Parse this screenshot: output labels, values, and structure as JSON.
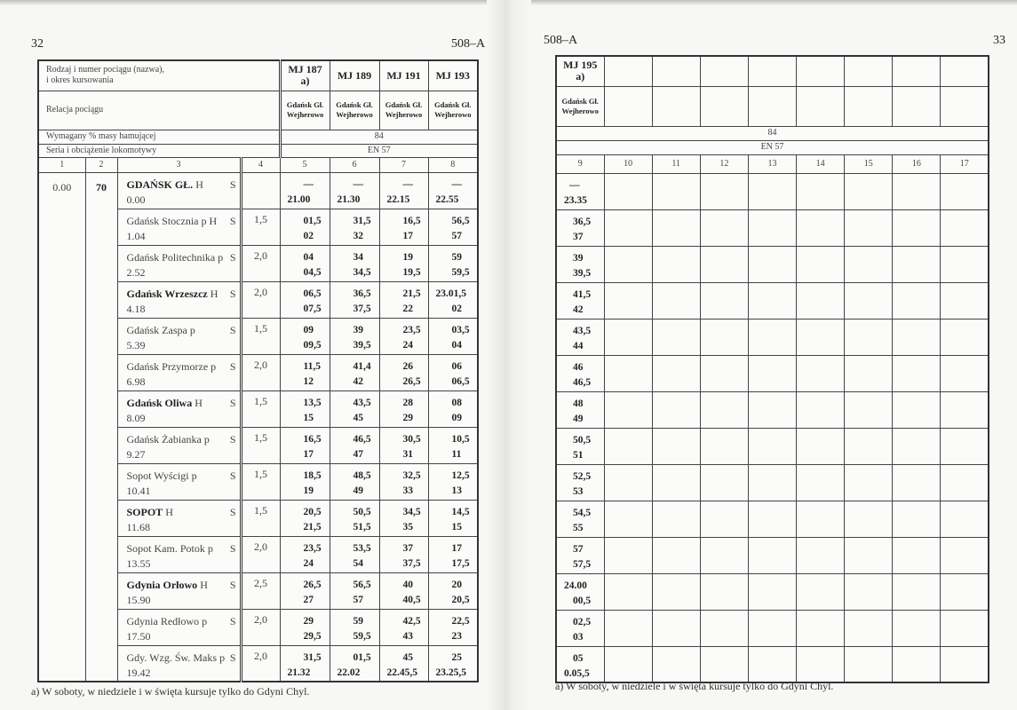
{
  "left": {
    "page_number": "32",
    "section": "508–A",
    "header": {
      "train_label": "Rodzaj i numer pociągu (nazwa),",
      "train_label_2": "i okres kursowania",
      "relation_label": "Relacja pociągu",
      "brake_label": "Wymagany % masy hamującej",
      "brake_value": "84",
      "loco_label": "Seria i obciążenie lokomotywy",
      "loco_value": "EN 57",
      "trains": [
        {
          "line1": "MJ 187",
          "line2": "a)"
        },
        {
          "line1": "MJ 189",
          "line2": ""
        },
        {
          "line1": "MJ 191",
          "line2": ""
        },
        {
          "line1": "MJ 193",
          "line2": ""
        }
      ],
      "relation_from": "Gdańsk Gł.",
      "relation_to": "Wejherowo",
      "column_numbers": [
        "1",
        "2",
        "3",
        "4",
        "5",
        "6",
        "7",
        "8"
      ]
    },
    "col1": "0.00",
    "col2": "70",
    "footnote": "a) W soboty, w niedziele i w święta kursuje tylko do Gdyni Chyl."
  },
  "right": {
    "section": "508–A",
    "page_number": "33",
    "train": {
      "line1": "MJ 195",
      "line2": "a)"
    },
    "relation_from": "Gdańsk Gł.",
    "relation_to": "Wejherowo",
    "brake_value": "84",
    "loco_value": "EN 57",
    "column_numbers": [
      "9",
      "10",
      "11",
      "12",
      "13",
      "14",
      "15",
      "16",
      "17"
    ],
    "footnote": "a) W soboty, w niedziele i w święta kursuje tylko do Gdyni Chyl."
  },
  "stations": [
    {
      "name": "GDAŃSK GŁ.",
      "bold": true,
      "mark": "H",
      "s": "S",
      "km": "0.00",
      "c4": "",
      "times": [
        [
          "—",
          "21.00"
        ],
        [
          "—",
          "21.30"
        ],
        [
          "—",
          "22.15"
        ],
        [
          "—",
          "22.55"
        ],
        [
          "—",
          "23.35"
        ]
      ]
    },
    {
      "name": "Gdańsk Stocznia",
      "bold": false,
      "mark": "p H",
      "s": "S",
      "km": "1.04",
      "c4": "1,5",
      "times": [
        [
          "01,5",
          "02"
        ],
        [
          "31,5",
          "32"
        ],
        [
          "16,5",
          "17"
        ],
        [
          "56,5",
          "57"
        ],
        [
          "36,5",
          "37"
        ]
      ]
    },
    {
      "name": "Gdańsk Politechnika",
      "bold": false,
      "mark": "p",
      "s": "S",
      "km": "2.52",
      "c4": "2,0",
      "times": [
        [
          "04",
          "04,5"
        ],
        [
          "34",
          "34,5"
        ],
        [
          "19",
          "19,5"
        ],
        [
          "59",
          "59,5"
        ],
        [
          "39",
          "39,5"
        ]
      ]
    },
    {
      "name": "Gdańsk Wrzeszcz",
      "bold": true,
      "mark": "H",
      "s": "S",
      "km": "4.18",
      "c4": "2,0",
      "times": [
        [
          "06,5",
          "07,5"
        ],
        [
          "36,5",
          "37,5"
        ],
        [
          "21,5",
          "22"
        ],
        [
          "23.01,5",
          "02"
        ],
        [
          "41,5",
          "42"
        ]
      ]
    },
    {
      "name": "Gdańsk Zaspa",
      "bold": false,
      "mark": "p",
      "s": "S",
      "km": "5.39",
      "c4": "1,5",
      "times": [
        [
          "09",
          "09,5"
        ],
        [
          "39",
          "39,5"
        ],
        [
          "23,5",
          "24"
        ],
        [
          "03,5",
          "04"
        ],
        [
          "43,5",
          "44"
        ]
      ]
    },
    {
      "name": "Gdańsk Przymorze",
      "bold": false,
      "mark": "p",
      "s": "S",
      "km": "6.98",
      "c4": "2,0",
      "times": [
        [
          "11,5",
          "12"
        ],
        [
          "41,4",
          "42"
        ],
        [
          "26",
          "26,5"
        ],
        [
          "06",
          "06,5"
        ],
        [
          "46",
          "46,5"
        ]
      ]
    },
    {
      "name": "Gdańsk Oliwa",
      "bold": true,
      "mark": "H",
      "s": "S",
      "km": "8.09",
      "c4": "1,5",
      "times": [
        [
          "13,5",
          "15"
        ],
        [
          "43,5",
          "45"
        ],
        [
          "28",
          "29"
        ],
        [
          "08",
          "09"
        ],
        [
          "48",
          "49"
        ]
      ]
    },
    {
      "name": "Gdańsk Żabianka",
      "bold": false,
      "mark": "p",
      "s": "S",
      "km": "9.27",
      "c4": "1,5",
      "times": [
        [
          "16,5",
          "17"
        ],
        [
          "46,5",
          "47"
        ],
        [
          "30,5",
          "31"
        ],
        [
          "10,5",
          "11"
        ],
        [
          "50,5",
          "51"
        ]
      ]
    },
    {
      "name": "Sopot Wyścigi",
      "bold": false,
      "mark": "p",
      "s": "S",
      "km": "10.41",
      "c4": "1,5",
      "times": [
        [
          "18,5",
          "19"
        ],
        [
          "48,5",
          "49"
        ],
        [
          "32,5",
          "33"
        ],
        [
          "12,5",
          "13"
        ],
        [
          "52,5",
          "53"
        ]
      ]
    },
    {
      "name": "SOPOT",
      "bold": true,
      "mark": "H",
      "s": "S",
      "km": "11.68",
      "c4": "1,5",
      "times": [
        [
          "20,5",
          "21,5"
        ],
        [
          "50,5",
          "51,5"
        ],
        [
          "34,5",
          "35"
        ],
        [
          "14,5",
          "15"
        ],
        [
          "54,5",
          "55"
        ]
      ]
    },
    {
      "name": "Sopot Kam. Potok",
      "bold": false,
      "mark": "p",
      "s": "S",
      "km": "13.55",
      "c4": "2,0",
      "times": [
        [
          "23,5",
          "24"
        ],
        [
          "53,5",
          "54"
        ],
        [
          "37",
          "37,5"
        ],
        [
          "17",
          "17,5"
        ],
        [
          "57",
          "57,5"
        ]
      ]
    },
    {
      "name": "Gdynia Orłowo",
      "bold": true,
      "mark": "H",
      "s": "S",
      "km": "15.90",
      "c4": "2,5",
      "times": [
        [
          "26,5",
          "27"
        ],
        [
          "56,5",
          "57"
        ],
        [
          "40",
          "40,5"
        ],
        [
          "20",
          "20,5"
        ],
        [
          "24.00",
          "00,5"
        ]
      ]
    },
    {
      "name": "Gdynia Redłowo",
      "bold": false,
      "mark": "p",
      "s": "S",
      "km": "17.50",
      "c4": "2,0",
      "times": [
        [
          "29",
          "29,5"
        ],
        [
          "59",
          "59,5"
        ],
        [
          "42,5",
          "43"
        ],
        [
          "22,5",
          "23"
        ],
        [
          "02,5",
          "03"
        ]
      ]
    },
    {
      "name": "Gdy. Wzg. Św. Maks",
      "bold": false,
      "mark": "p",
      "s": "S",
      "km": "19.42",
      "c4": "2,0",
      "times": [
        [
          "31,5",
          "21.32"
        ],
        [
          "01,5",
          "22.02"
        ],
        [
          "45",
          "22.45,5"
        ],
        [
          "25",
          "23.25,5"
        ],
        [
          "05",
          "0.05,5"
        ]
      ]
    }
  ]
}
